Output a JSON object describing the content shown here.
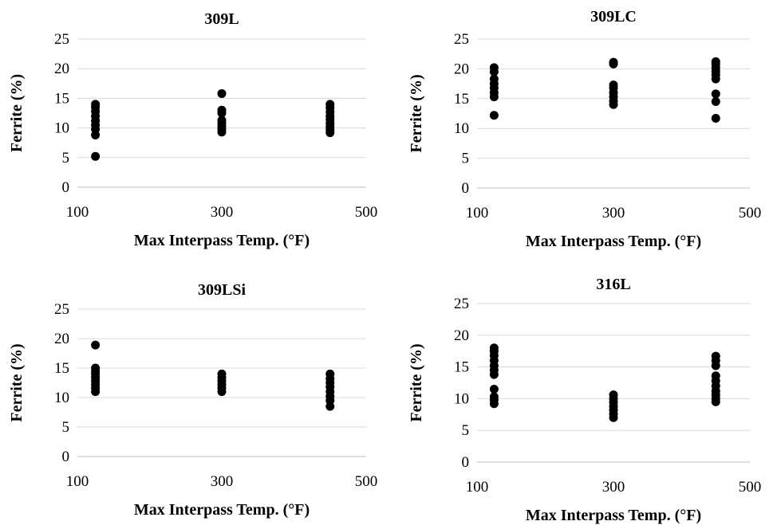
{
  "chart_data": [
    {
      "type": "scatter",
      "title": "309L",
      "xlabel": "Max Interpass Temp. (°F)",
      "ylabel": "Ferrite (%)",
      "xlim": [
        100,
        500
      ],
      "ylim": [
        0,
        25
      ],
      "xticks": [
        "100",
        "300",
        "500"
      ],
      "yticks": [
        "0",
        "5",
        "10",
        "15",
        "20",
        "25"
      ],
      "grid": "horizontal",
      "points": [
        {
          "x": 125,
          "y": 5.2
        },
        {
          "x": 125,
          "y": 8.8
        },
        {
          "x": 125,
          "y": 9.8
        },
        {
          "x": 125,
          "y": 10.5
        },
        {
          "x": 125,
          "y": 11.2
        },
        {
          "x": 125,
          "y": 12.0
        },
        {
          "x": 125,
          "y": 12.8
        },
        {
          "x": 125,
          "y": 13.5
        },
        {
          "x": 125,
          "y": 14.0
        },
        {
          "x": 300,
          "y": 9.3
        },
        {
          "x": 300,
          "y": 9.8
        },
        {
          "x": 300,
          "y": 10.3
        },
        {
          "x": 300,
          "y": 10.8
        },
        {
          "x": 300,
          "y": 11.3
        },
        {
          "x": 300,
          "y": 12.5
        },
        {
          "x": 300,
          "y": 13.0
        },
        {
          "x": 300,
          "y": 15.8
        },
        {
          "x": 450,
          "y": 9.2
        },
        {
          "x": 450,
          "y": 9.7
        },
        {
          "x": 450,
          "y": 10.2
        },
        {
          "x": 450,
          "y": 10.8
        },
        {
          "x": 450,
          "y": 11.4
        },
        {
          "x": 450,
          "y": 12.0
        },
        {
          "x": 450,
          "y": 12.7
        },
        {
          "x": 450,
          "y": 13.4
        },
        {
          "x": 450,
          "y": 14.0
        }
      ]
    },
    {
      "type": "scatter",
      "title": "309LC",
      "xlabel": "Max Interpass Temp. (°F)",
      "ylabel": "Ferrite (%)",
      "xlim": [
        100,
        500
      ],
      "ylim": [
        0,
        25
      ],
      "xticks": [
        "100",
        "300",
        "500"
      ],
      "yticks": [
        "0",
        "5",
        "10",
        "15",
        "20",
        "25"
      ],
      "grid": "horizontal",
      "points": [
        {
          "x": 125,
          "y": 12.2
        },
        {
          "x": 125,
          "y": 15.3
        },
        {
          "x": 125,
          "y": 16.0
        },
        {
          "x": 125,
          "y": 16.8
        },
        {
          "x": 125,
          "y": 17.5
        },
        {
          "x": 125,
          "y": 18.3
        },
        {
          "x": 125,
          "y": 19.5
        },
        {
          "x": 125,
          "y": 20.2
        },
        {
          "x": 300,
          "y": 14.0
        },
        {
          "x": 300,
          "y": 14.6
        },
        {
          "x": 300,
          "y": 15.3
        },
        {
          "x": 300,
          "y": 16.0
        },
        {
          "x": 300,
          "y": 16.8
        },
        {
          "x": 300,
          "y": 17.3
        },
        {
          "x": 300,
          "y": 20.8
        },
        {
          "x": 300,
          "y": 21.1
        },
        {
          "x": 450,
          "y": 11.7
        },
        {
          "x": 450,
          "y": 14.5
        },
        {
          "x": 450,
          "y": 15.8
        },
        {
          "x": 450,
          "y": 18.3
        },
        {
          "x": 450,
          "y": 19.0
        },
        {
          "x": 450,
          "y": 19.6
        },
        {
          "x": 450,
          "y": 20.2
        },
        {
          "x": 450,
          "y": 20.8
        },
        {
          "x": 450,
          "y": 21.2
        }
      ]
    },
    {
      "type": "scatter",
      "title": "309LSi",
      "xlabel": "Max Interpass Temp. (°F)",
      "ylabel": "Ferrite (%)",
      "xlim": [
        100,
        500
      ],
      "ylim": [
        0,
        25
      ],
      "xticks": [
        "100",
        "300",
        "500"
      ],
      "yticks": [
        "0",
        "5",
        "10",
        "15",
        "20",
        "25"
      ],
      "grid": "horizontal",
      "points": [
        {
          "x": 125,
          "y": 11.0
        },
        {
          "x": 125,
          "y": 11.6
        },
        {
          "x": 125,
          "y": 12.2
        },
        {
          "x": 125,
          "y": 12.8
        },
        {
          "x": 125,
          "y": 13.4
        },
        {
          "x": 125,
          "y": 14.0
        },
        {
          "x": 125,
          "y": 14.5
        },
        {
          "x": 125,
          "y": 15.0
        },
        {
          "x": 125,
          "y": 18.9
        },
        {
          "x": 300,
          "y": 11.0
        },
        {
          "x": 300,
          "y": 11.6
        },
        {
          "x": 300,
          "y": 12.2
        },
        {
          "x": 300,
          "y": 12.8
        },
        {
          "x": 300,
          "y": 13.4
        },
        {
          "x": 300,
          "y": 14.0
        },
        {
          "x": 450,
          "y": 8.5
        },
        {
          "x": 450,
          "y": 9.5
        },
        {
          "x": 450,
          "y": 10.2
        },
        {
          "x": 450,
          "y": 11.0
        },
        {
          "x": 450,
          "y": 11.8
        },
        {
          "x": 450,
          "y": 12.5
        },
        {
          "x": 450,
          "y": 13.2
        },
        {
          "x": 450,
          "y": 14.0
        }
      ]
    },
    {
      "type": "scatter",
      "title": "316L",
      "xlabel": "Max Interpass Temp. (°F)",
      "ylabel": "Ferrite (%)",
      "xlim": [
        100,
        500
      ],
      "ylim": [
        0,
        25
      ],
      "xticks": [
        "100",
        "300",
        "500"
      ],
      "yticks": [
        "0",
        "5",
        "10",
        "15",
        "20",
        "25"
      ],
      "grid": "horizontal",
      "points": [
        {
          "x": 125,
          "y": 9.2
        },
        {
          "x": 125,
          "y": 9.8
        },
        {
          "x": 125,
          "y": 10.3
        },
        {
          "x": 125,
          "y": 11.5
        },
        {
          "x": 125,
          "y": 13.8
        },
        {
          "x": 125,
          "y": 14.5
        },
        {
          "x": 125,
          "y": 15.2
        },
        {
          "x": 125,
          "y": 16.0
        },
        {
          "x": 125,
          "y": 16.8
        },
        {
          "x": 125,
          "y": 17.5
        },
        {
          "x": 125,
          "y": 18.0
        },
        {
          "x": 300,
          "y": 7.0
        },
        {
          "x": 300,
          "y": 7.6
        },
        {
          "x": 300,
          "y": 8.2
        },
        {
          "x": 300,
          "y": 8.8
        },
        {
          "x": 300,
          "y": 9.4
        },
        {
          "x": 300,
          "y": 10.0
        },
        {
          "x": 300,
          "y": 10.6
        },
        {
          "x": 450,
          "y": 9.5
        },
        {
          "x": 450,
          "y": 10.0
        },
        {
          "x": 450,
          "y": 10.6
        },
        {
          "x": 450,
          "y": 11.2
        },
        {
          "x": 450,
          "y": 12.0
        },
        {
          "x": 450,
          "y": 12.8
        },
        {
          "x": 450,
          "y": 13.6
        },
        {
          "x": 450,
          "y": 15.2
        },
        {
          "x": 450,
          "y": 16.0
        },
        {
          "x": 450,
          "y": 16.7
        }
      ]
    }
  ]
}
